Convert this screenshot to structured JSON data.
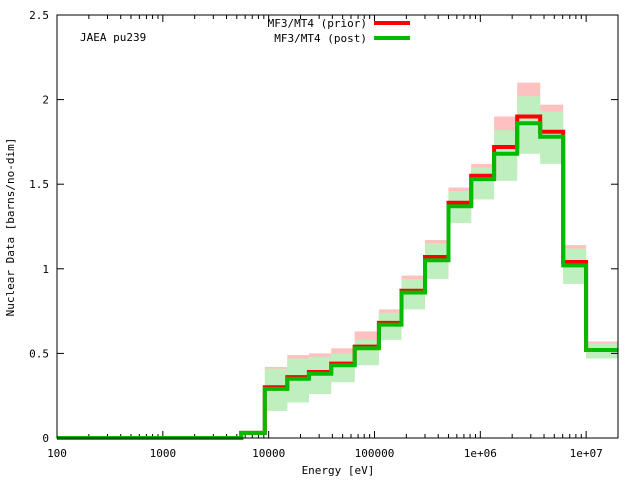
{
  "chart_data": {
    "type": "step",
    "title": "",
    "annotation": "JAEA pu239",
    "xlabel": "Energy [eV]",
    "ylabel": "Nuclear Data [barns/no-dim]",
    "xscale": "log",
    "xlim": [
      100,
      20000000
    ],
    "ylim": [
      0,
      2.5
    ],
    "x_ticks": [
      {
        "value": 100,
        "label": "100"
      },
      {
        "value": 1000,
        "label": "1000"
      },
      {
        "value": 10000,
        "label": "10000"
      },
      {
        "value": 100000,
        "label": "100000"
      },
      {
        "value": 1000000,
        "label": "1e+06"
      },
      {
        "value": 10000000,
        "label": "1e+07"
      }
    ],
    "y_ticks": [
      {
        "value": 0,
        "label": "0"
      },
      {
        "value": 0.5,
        "label": "0.5"
      },
      {
        "value": 1,
        "label": "1"
      },
      {
        "value": 1.5,
        "label": "1.5"
      },
      {
        "value": 2,
        "label": "2"
      },
      {
        "value": 2.5,
        "label": "2.5"
      }
    ],
    "legend_position": "top-center",
    "bin_edges": [
      100,
      5500,
      9200,
      15000,
      24000,
      39000,
      65000,
      110000,
      180000,
      300000,
      500000,
      820000,
      1350000,
      2230000,
      3680000,
      6070000,
      10000000,
      20000000
    ],
    "series": [
      {
        "name": "MF3/MT4 (prior)",
        "color": "#ff0000",
        "band_color": "#ffc0c0",
        "values": [
          0.0,
          0.03,
          0.3,
          0.36,
          0.39,
          0.44,
          0.54,
          0.68,
          0.87,
          1.07,
          1.39,
          1.55,
          1.72,
          1.9,
          1.81,
          1.04,
          0.52
        ],
        "band_low": [
          0.0,
          0.02,
          0.18,
          0.24,
          0.29,
          0.35,
          0.45,
          0.6,
          0.78,
          0.97,
          1.28,
          1.44,
          1.57,
          1.72,
          1.65,
          0.93,
          0.47
        ],
        "band_high": [
          0.0,
          0.04,
          0.42,
          0.49,
          0.5,
          0.53,
          0.63,
          0.76,
          0.96,
          1.17,
          1.48,
          1.62,
          1.9,
          2.1,
          1.97,
          1.14,
          0.57
        ]
      },
      {
        "name": "MF3/MT4 (post)",
        "color": "#00bb00",
        "band_color": "#bfeebf",
        "values": [
          0.0,
          0.03,
          0.29,
          0.35,
          0.38,
          0.43,
          0.53,
          0.67,
          0.86,
          1.05,
          1.37,
          1.53,
          1.68,
          1.86,
          1.78,
          1.02,
          0.52
        ],
        "band_low": [
          0.0,
          0.02,
          0.16,
          0.21,
          0.26,
          0.33,
          0.43,
          0.58,
          0.76,
          0.94,
          1.27,
          1.41,
          1.52,
          1.68,
          1.62,
          0.91,
          0.47
        ],
        "band_high": [
          0.0,
          0.04,
          0.41,
          0.47,
          0.48,
          0.5,
          0.58,
          0.74,
          0.94,
          1.15,
          1.46,
          1.6,
          1.82,
          2.02,
          1.93,
          1.12,
          0.56
        ]
      }
    ]
  }
}
